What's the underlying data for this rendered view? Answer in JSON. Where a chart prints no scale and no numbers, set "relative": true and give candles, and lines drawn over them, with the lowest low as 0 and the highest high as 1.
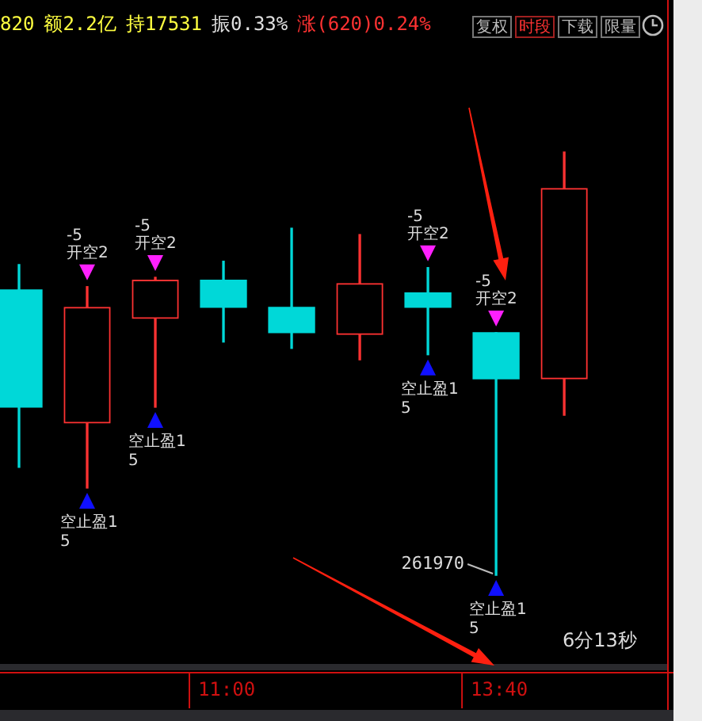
{
  "chart_data": {
    "type": "candlestick",
    "relative": true,
    "categories": [
      null,
      null,
      null,
      "11:00",
      null,
      null,
      null,
      "13:40",
      null
    ],
    "ohlc": [
      [
        0.674,
        0.734,
        0.255,
        0.397
      ],
      [
        0.36,
        0.682,
        0.206,
        0.633
      ],
      [
        0.607,
        0.704,
        0.397,
        0.697
      ],
      [
        0.697,
        0.742,
        0.551,
        0.633
      ],
      [
        0.633,
        0.82,
        0.536,
        0.573
      ],
      [
        0.569,
        0.805,
        0.509,
        0.689
      ],
      [
        0.667,
        0.727,
        0.521,
        0.633
      ],
      [
        0.573,
        0.573,
        0,
        0.464
      ],
      [
        0.464,
        1,
        0.378,
        0.914
      ]
    ],
    "colors": [
      "#00d8d8",
      "#ff3232",
      "#ff3232",
      "#00d8d8",
      "#00d8d8",
      "#ff3232",
      "#00d8d8",
      "#00d8d8",
      "#ff3232"
    ],
    "legend": false,
    "annotations": [
      "820",
      "额2.2亿",
      "持17531",
      "振0.33%",
      "涨(620)0.24%",
      "复权",
      "时段",
      "下载",
      "限量",
      "6分13秒",
      "-5",
      "开空2",
      "空止盈1",
      "5",
      "-5",
      "开空2",
      "空止盈1",
      "5",
      "-5",
      "开空2",
      "空止盈1",
      "5",
      "-5",
      "开空2",
      "空止盈1",
      "5",
      {
        "text": "261970",
        "x": "13:40",
        "y": 0
      }
    ]
  }
}
